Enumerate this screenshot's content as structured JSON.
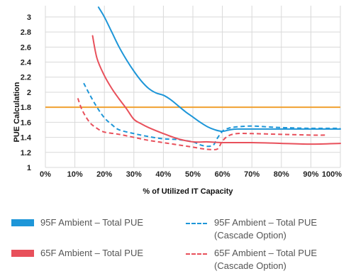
{
  "chart_data": {
    "type": "line",
    "title": "",
    "xlabel": "% of Utilized IT Capacity",
    "ylabel": "PUE Calculation",
    "xlim": [
      0,
      100
    ],
    "ylim": [
      1,
      3.15
    ],
    "x_ticks": [
      0,
      10,
      20,
      30,
      40,
      50,
      60,
      70,
      80,
      90,
      100
    ],
    "x_tick_labels": [
      "0%",
      "10%",
      "20%",
      "30%",
      "40%",
      "50%",
      "60%",
      "70%",
      "80%",
      "90%",
      "100%"
    ],
    "y_ticks": [
      1,
      1.2,
      1.4,
      1.6,
      1.8,
      2,
      2.2,
      2.4,
      2.6,
      2.8,
      3
    ],
    "y_tick_labels": [
      "1",
      "1.2",
      "1.4",
      "1.6",
      "1.8",
      "2",
      "2.2",
      "2.4",
      "2.6",
      "2.8",
      "3"
    ],
    "grid": true,
    "reference_line": {
      "y": 1.8,
      "color": "#f0a030"
    },
    "series": [
      {
        "name": "95F Ambient – Total PUE",
        "color": "#1e96d8",
        "style": "solid",
        "x": [
          18,
          20,
          22.5,
          25,
          27.5,
          30,
          32.5,
          35,
          37.5,
          40,
          42.5,
          45,
          47.5,
          50,
          52.5,
          55,
          57.5,
          60,
          62.5,
          65,
          70,
          80,
          90,
          100
        ],
        "y": [
          3.13,
          3.0,
          2.8,
          2.6,
          2.43,
          2.28,
          2.15,
          2.05,
          1.99,
          1.96,
          1.9,
          1.82,
          1.74,
          1.67,
          1.6,
          1.54,
          1.5,
          1.48,
          1.5,
          1.51,
          1.51,
          1.51,
          1.51,
          1.51
        ]
      },
      {
        "name": "95F Ambient – Total PUE",
        "sublabel": "(Cascade Option)",
        "color": "#1e96d8",
        "style": "dashed",
        "x": [
          13,
          15,
          17.5,
          20,
          22.5,
          25,
          30,
          35,
          40,
          45,
          50,
          52.5,
          55,
          57,
          58,
          60,
          62,
          65,
          70,
          75,
          80,
          90,
          100
        ],
        "y": [
          2.12,
          1.97,
          1.8,
          1.66,
          1.57,
          1.5,
          1.45,
          1.41,
          1.38,
          1.37,
          1.34,
          1.3,
          1.28,
          1.3,
          1.37,
          1.48,
          1.52,
          1.54,
          1.55,
          1.54,
          1.53,
          1.52,
          1.52
        ]
      },
      {
        "name": "65F Ambient – Total PUE",
        "color": "#e8505b",
        "style": "solid",
        "x": [
          16,
          17.5,
          20,
          22.5,
          25,
          27.5,
          30,
          32.5,
          35,
          40,
          45,
          50,
          55,
          60,
          70,
          80,
          90,
          100
        ],
        "y": [
          2.75,
          2.45,
          2.22,
          2.05,
          1.91,
          1.78,
          1.64,
          1.58,
          1.53,
          1.45,
          1.38,
          1.34,
          1.34,
          1.33,
          1.33,
          1.32,
          1.31,
          1.32
        ]
      },
      {
        "name": "65F Ambient – Total PUE",
        "sublabel": "(Cascade Option)",
        "color": "#e8505b",
        "style": "dashed",
        "x": [
          11,
          12.5,
          15,
          17.5,
          20,
          25,
          30,
          35,
          40,
          45,
          50,
          53,
          55,
          58,
          59,
          60,
          62,
          65,
          70,
          80,
          90,
          95
        ],
        "y": [
          1.92,
          1.76,
          1.6,
          1.52,
          1.47,
          1.44,
          1.4,
          1.36,
          1.33,
          1.3,
          1.27,
          1.25,
          1.24,
          1.24,
          1.28,
          1.35,
          1.42,
          1.45,
          1.45,
          1.44,
          1.43,
          1.43
        ]
      }
    ]
  },
  "legend": {
    "placement": "bottom",
    "items": [
      {
        "label": "95F Ambient – Total PUE",
        "sublabel": "",
        "color": "#1e96d8",
        "style": "solid"
      },
      {
        "label": "95F Ambient – Total PUE",
        "sublabel": "(Cascade Option)",
        "color": "#1e96d8",
        "style": "dashed"
      },
      {
        "label": "65F Ambient – Total PUE",
        "sublabel": "",
        "color": "#e8505b",
        "style": "solid"
      },
      {
        "label": "65F Ambient – Total PUE",
        "sublabel": "(Cascade Option)",
        "color": "#e8505b",
        "style": "dashed"
      }
    ]
  }
}
